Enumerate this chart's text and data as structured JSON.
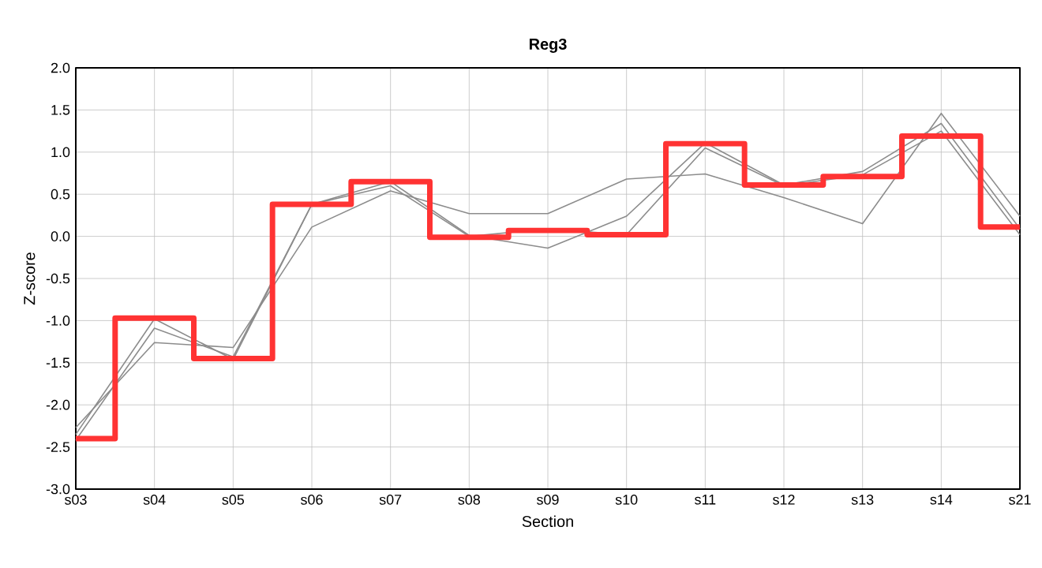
{
  "chart_data": {
    "type": "line",
    "title": "Reg3",
    "xlabel": "Section",
    "ylabel": "Z-score",
    "categories": [
      "s03",
      "s04",
      "s05",
      "s06",
      "s07",
      "s08",
      "s09",
      "s10",
      "s11",
      "s12",
      "s13",
      "s14",
      "s21"
    ],
    "series": [
      {
        "color": "#8c8c8c",
        "values": [
          -2.27,
          -1.26,
          -1.32,
          0.11,
          0.54,
          0.27,
          0.27,
          0.68,
          0.74,
          0.46,
          0.15,
          1.46,
          0.24
        ]
      },
      {
        "color": "#8c8c8c",
        "values": [
          -2.35,
          -0.98,
          -1.46,
          0.38,
          0.65,
          0.01,
          -0.14,
          0.24,
          1.11,
          0.61,
          0.77,
          1.34,
          0.09
        ]
      },
      {
        "color": "#8c8c8c",
        "values": [
          -2.42,
          -1.09,
          -1.43,
          0.38,
          0.6,
          0.0,
          0.09,
          0.02,
          1.05,
          0.6,
          0.73,
          1.25,
          0.02
        ]
      },
      {
        "type": "step",
        "color": "#ff3333",
        "values": [
          -2.4,
          -0.97,
          -1.45,
          0.38,
          0.65,
          -0.01,
          0.07,
          0.02,
          1.1,
          0.61,
          0.71,
          1.19,
          0.11
        ]
      }
    ],
    "ylim": [
      -3.0,
      2.0
    ],
    "yticks": [
      {
        "value": -3,
        "label": "-3.0"
      },
      {
        "value": -2.5,
        "label": "-2.5"
      },
      {
        "value": -2,
        "label": "-2.0"
      },
      {
        "value": -1.5,
        "label": "-1.5"
      },
      {
        "value": -1,
        "label": "-1.0"
      },
      {
        "value": -0.5,
        "label": "-0.5"
      },
      {
        "value": 0,
        "label": "0.0"
      },
      {
        "value": 0.5,
        "label": "0.5"
      },
      {
        "value": 1,
        "label": "1.0"
      },
      {
        "value": 1.5,
        "label": "1.5"
      },
      {
        "value": 2,
        "label": "2.0"
      }
    ],
    "grid": true
  }
}
